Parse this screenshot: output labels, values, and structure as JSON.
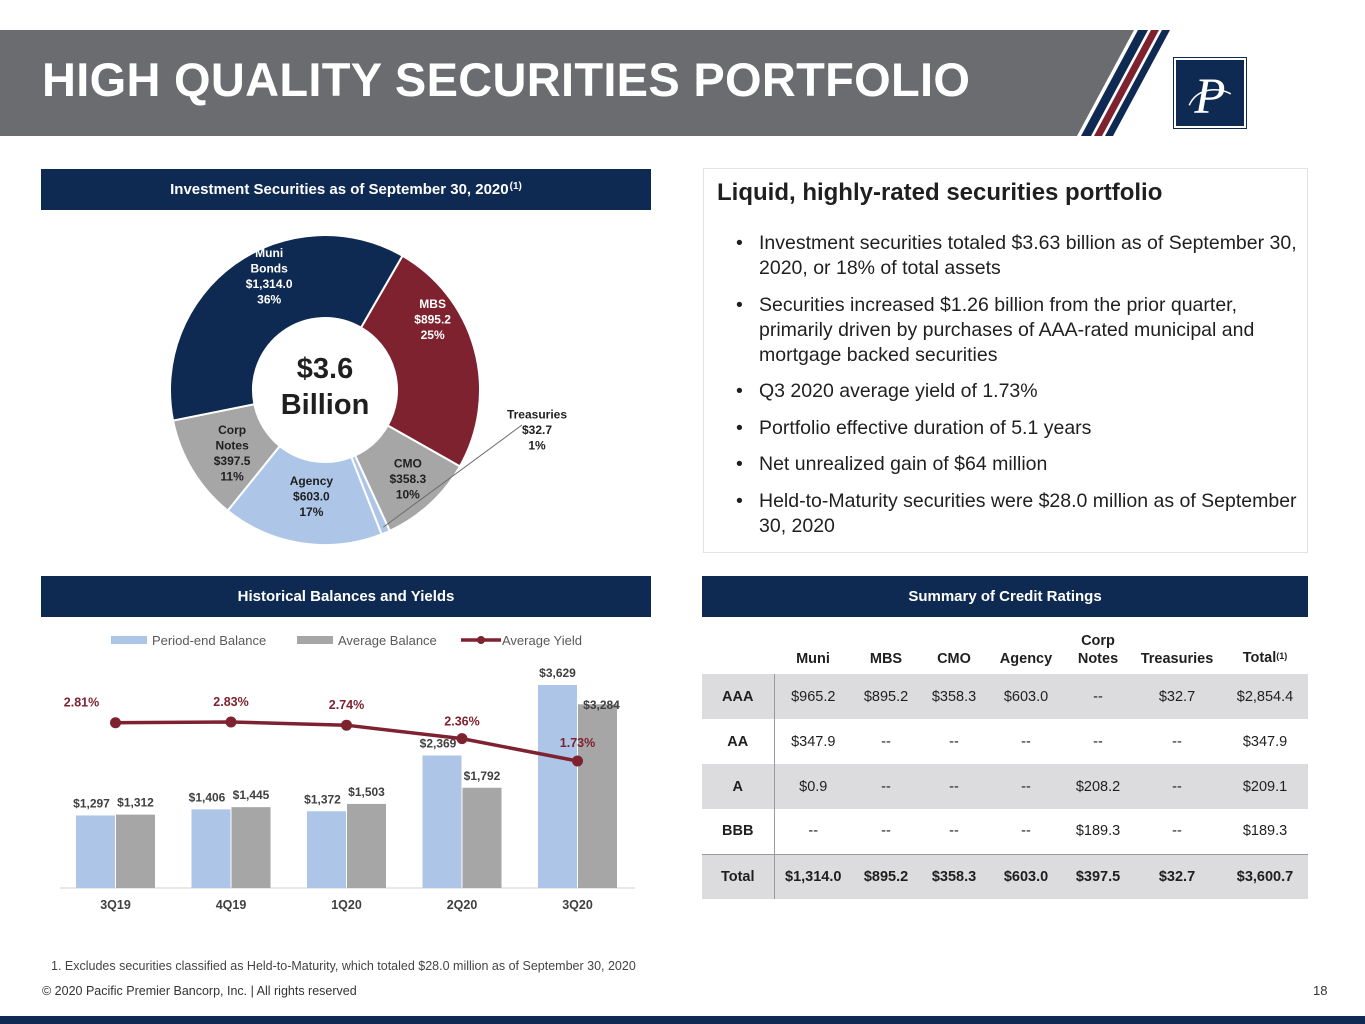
{
  "header": {
    "title": "HIGH QUALITY SECURITIES PORTFOLIO",
    "logo_letter": "P"
  },
  "colors": {
    "navy": "#0f2a52",
    "maroon": "#7e2230",
    "gray_band": "#6b6c70",
    "light_blue": "#adc6e8",
    "gray": "#a6a6a6",
    "yield_line": "#7e2230"
  },
  "investment_panel": {
    "title": "Investment Securities as of September 30, 2020",
    "title_sup": "(1)",
    "center_line1": "$3.6",
    "center_line2": "Billion"
  },
  "chart_data": [
    {
      "type": "pie",
      "title": "Investment Securities as of September 30, 2020",
      "slices": [
        {
          "name": "MBS",
          "value": 895.2,
          "label_value": "$895.2",
          "percent": "25%",
          "color": "#7e2230"
        },
        {
          "name": "CMO",
          "value": 358.3,
          "label_value": "$358.3",
          "percent": "10%",
          "color": "#a6a6a6"
        },
        {
          "name": "Treasuries",
          "value": 32.7,
          "label_value": "$32.7",
          "percent": "1%",
          "color": "#adc6e8"
        },
        {
          "name": "Agency",
          "value": 603.0,
          "label_value": "$603.0",
          "percent": "17%",
          "color": "#adc6e8"
        },
        {
          "name": "Corp Notes",
          "value": 397.5,
          "label_value": "$397.5",
          "percent": "11%",
          "color": "#a6a6a6"
        },
        {
          "name": "Muni Bonds",
          "value": 1314.0,
          "label_value": "$1,314.0",
          "percent": "36%",
          "color": "#0f2a52"
        }
      ]
    },
    {
      "type": "bar",
      "title": "Historical Balances and Yields",
      "categories": [
        "3Q19",
        "4Q19",
        "1Q20",
        "2Q20",
        "3Q20"
      ],
      "series": [
        {
          "name": "Period-end Balance",
          "values": [
            1297,
            1406,
            1372,
            2369,
            3629
          ],
          "labels": [
            "$1,297",
            "$1,406",
            "$1,372",
            "$2,369",
            "$3,629"
          ],
          "color": "#adc6e8"
        },
        {
          "name": "Average Balance",
          "values": [
            1312,
            1445,
            1503,
            1792,
            3284
          ],
          "labels": [
            "$1,312",
            "$1,445",
            "$1,503",
            "$1,792",
            "$3,284"
          ],
          "color": "#a6a6a6"
        },
        {
          "name": "Average Yield",
          "type": "line",
          "values": [
            2.81,
            2.83,
            2.74,
            2.36,
            1.73
          ],
          "labels": [
            "2.81%",
            "2.83%",
            "2.74%",
            "2.36%",
            "1.73%"
          ],
          "color": "#7e2230"
        }
      ],
      "grid": false,
      "legend_position": "top"
    }
  ],
  "right_panel": {
    "title": "Liquid, highly-rated securities portfolio",
    "bullets": [
      "Investment securities totaled $3.63 billion as of September 30, 2020, or 18% of total assets",
      "Securities increased $1.26 billion from the prior quarter, primarily driven by purchases of AAA-rated municipal and mortgage backed securities",
      "Q3 2020 average yield of 1.73%",
      "Portfolio effective duration of 5.1 years",
      "Net unrealized gain of $64 million",
      "Held-to-Maturity securities were $28.0 million as of September 30, 2020"
    ]
  },
  "historical_panel": {
    "title": "Historical Balances and Yields"
  },
  "ratings_panel": {
    "title": "Summary of Credit Ratings",
    "columns": [
      "",
      "Muni",
      "MBS",
      "CMO",
      "Agency",
      "Corp Notes",
      "Treasuries",
      "Total"
    ],
    "total_sup": "(1)",
    "rows": [
      [
        "AAA",
        "$965.2",
        "$895.2",
        "$358.3",
        "$603.0",
        "--",
        "$32.7",
        "$2,854.4"
      ],
      [
        "AA",
        "$347.9",
        "--",
        "--",
        "--",
        "--",
        "--",
        "$347.9"
      ],
      [
        "A",
        "$0.9",
        "--",
        "--",
        "--",
        "$208.2",
        "--",
        "$209.1"
      ],
      [
        "BBB",
        "--",
        "--",
        "--",
        "--",
        "$189.3",
        "--",
        "$189.3"
      ],
      [
        "Total",
        "$1,314.0",
        "$895.2",
        "$358.3",
        "$603.0",
        "$397.5",
        "$32.7",
        "$3,600.7"
      ]
    ]
  },
  "footer": {
    "footnote": "1. Excludes securities classified as Held-to-Maturity, which totaled $28.0 million as of September 30, 2020",
    "copyright": "© 2020 Pacific Premier Bancorp, Inc. | All rights reserved",
    "page_number": "18"
  }
}
